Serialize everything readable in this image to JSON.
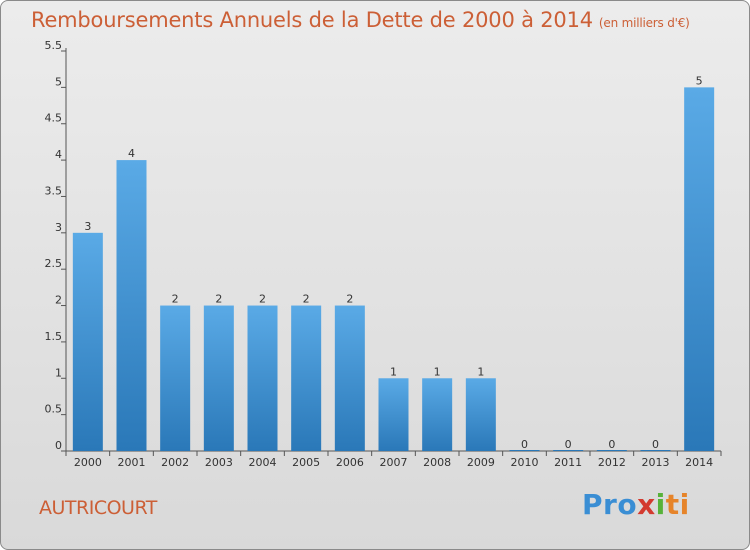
{
  "header": {
    "title": "Remboursements Annuels de la Dette de 2000 à 2014",
    "subtitle": "(en milliers d'€)"
  },
  "footer": {
    "town": "AUTRICOURT",
    "logo": [
      "Pro",
      "x",
      "i",
      "ti"
    ]
  },
  "colors": {
    "title": "#cc5f36",
    "bar_top": "#5aaae6",
    "bar_bottom": "#2a78b8"
  },
  "chart_data": {
    "type": "bar",
    "title": "Remboursements Annuels de la Dette de 2000 à 2014",
    "subtitle": "(en milliers d'€)",
    "xlabel": "",
    "ylabel": "",
    "ylim": [
      0,
      5.5
    ],
    "yticks": [
      0,
      0.5,
      1,
      1.5,
      2,
      2.5,
      3,
      3.5,
      4,
      4.5,
      5,
      5.5
    ],
    "ytick_labels": [
      "0",
      "0.5",
      "1",
      "1.5",
      "2",
      "2.5",
      "3",
      "3.5",
      "4",
      "4.5",
      "5",
      "5.5"
    ],
    "grid": false,
    "categories": [
      "2000",
      "2001",
      "2002",
      "2003",
      "2004",
      "2005",
      "2006",
      "2007",
      "2008",
      "2009",
      "2010",
      "2011",
      "2012",
      "2013",
      "2014"
    ],
    "values": [
      3,
      4,
      2,
      2,
      2,
      2,
      2,
      1,
      1,
      1,
      0,
      0,
      0,
      0,
      5
    ],
    "value_labels": [
      "3",
      "4",
      "2",
      "2",
      "2",
      "2",
      "2",
      "1",
      "1",
      "1",
      "0",
      "0",
      "0",
      "0",
      "5"
    ]
  }
}
